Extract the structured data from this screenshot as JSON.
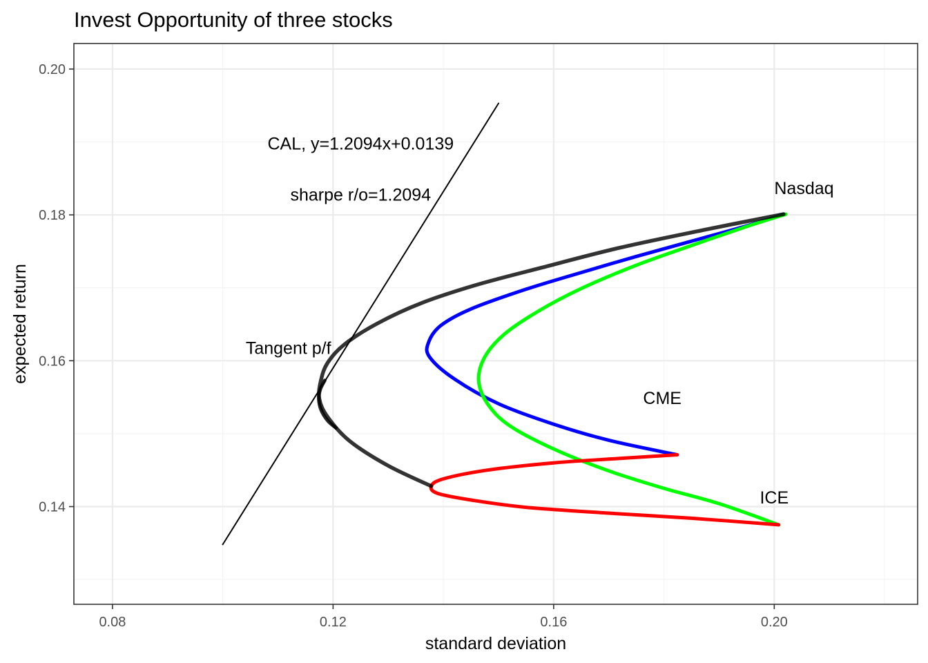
{
  "chart_data": {
    "type": "line",
    "title": "Invest Opportunity of three stocks",
    "xlabel": "standard deviation",
    "ylabel": "expected return",
    "xlim": [
      0.073,
      0.226
    ],
    "ylim": [
      0.1266,
      0.2035
    ],
    "x_ticks": [
      0.08,
      0.12,
      0.16,
      0.2
    ],
    "x_tick_labels": [
      "0.08",
      "0.12",
      "0.16",
      "0.20"
    ],
    "y_ticks": [
      0.14,
      0.16,
      0.18,
      0.2
    ],
    "y_tick_labels": [
      "0.14",
      "0.16",
      "0.18",
      "0.20"
    ],
    "grid": true,
    "series": [
      {
        "color": "#0000ff",
        "x": [
          0.1824,
          0.17,
          0.16,
          0.15,
          0.142,
          0.1375,
          0.1373,
          0.1395,
          0.145,
          0.155,
          0.165,
          0.175,
          0.185,
          0.195,
          0.2018
        ],
        "y": [
          0.1471,
          0.1491,
          0.1513,
          0.1541,
          0.1575,
          0.1605,
          0.1625,
          0.1648,
          0.1671,
          0.1698,
          0.1721,
          0.1743,
          0.1764,
          0.1785,
          0.1801
        ]
      },
      {
        "color": "#00ff00",
        "x": [
          0.2008,
          0.19,
          0.18,
          0.17,
          0.16,
          0.152,
          0.148,
          0.1464,
          0.1475,
          0.151,
          0.157,
          0.165,
          0.175,
          0.185,
          0.195,
          0.2021
        ],
        "y": [
          0.1375,
          0.1404,
          0.1425,
          0.1449,
          0.1479,
          0.1511,
          0.1541,
          0.1573,
          0.1605,
          0.1636,
          0.1667,
          0.1699,
          0.1731,
          0.1758,
          0.1784,
          0.1801
        ]
      },
      {
        "color": "#ff0000",
        "x": [
          0.2008,
          0.185,
          0.17,
          0.155,
          0.145,
          0.139,
          0.1378,
          0.14,
          0.148,
          0.16,
          0.172,
          0.1824
        ],
        "y": [
          0.1375,
          0.1384,
          0.1391,
          0.1399,
          0.1409,
          0.1418,
          0.1428,
          0.1438,
          0.145,
          0.146,
          0.1466,
          0.1471
        ]
      },
      {
        "color": "#000000",
        "x": [
          0.1378,
          0.13,
          0.123,
          0.119,
          0.1175,
          0.1178,
          0.119,
          0.122,
          0.128,
          0.136,
          0.146,
          0.158,
          0.172,
          0.187,
          0.2017
        ],
        "y": [
          0.1428,
          0.1456,
          0.149,
          0.1523,
          0.1548,
          0.1573,
          0.1597,
          0.1622,
          0.1651,
          0.1679,
          0.1704,
          0.1728,
          0.1755,
          0.1779,
          0.1801
        ]
      },
      {
        "color": "#000000",
        "x": [
          0.1205,
          0.119,
          0.1178,
          0.1174,
          0.1177,
          0.1185
        ],
        "y": [
          0.1508,
          0.1518,
          0.1533,
          0.1548,
          0.1561,
          0.1573
        ]
      },
      {
        "color": "#000000",
        "x": [
          0.1,
          0.15
        ],
        "y": [
          0.1348,
          0.1953
        ]
      }
    ],
    "annotations": [
      {
        "text": "Nasdaq",
        "x": 0.2054,
        "y": 0.1837
      },
      {
        "text": "CME",
        "x": 0.1797,
        "y": 0.1549
      },
      {
        "text": "ICE",
        "x": 0.2,
        "y": 0.1413
      },
      {
        "text": "Tangent p/f",
        "x": 0.1119,
        "y": 0.1618
      },
      {
        "text": "CAL, y=1.2094x+0.0139",
        "x": 0.125,
        "y": 0.1898
      },
      {
        "text": "sharpe r/o=1.2094",
        "x": 0.125,
        "y": 0.1828
      }
    ]
  }
}
